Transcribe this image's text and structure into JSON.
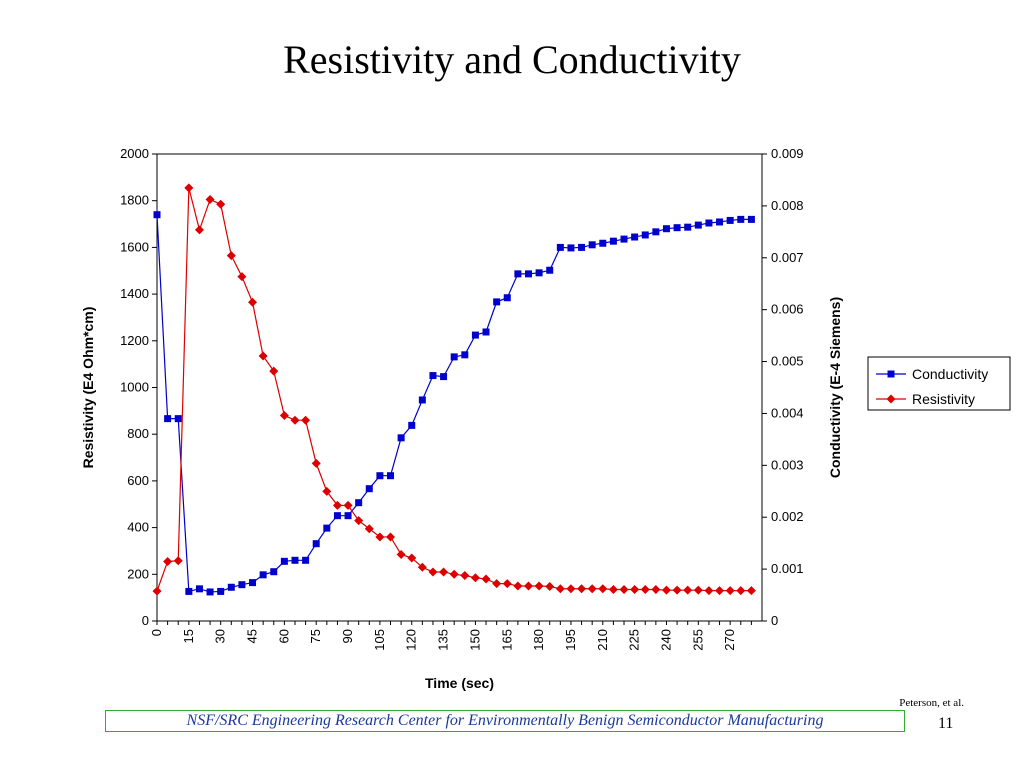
{
  "slide": {
    "title": "Resistivity and Conductivity",
    "credit": "Peterson, et al.",
    "footer": "NSF/SRC Engineering Research Center for Environmentally Benign Semiconductor Manufacturing",
    "page_number": "11"
  },
  "chart_data": {
    "type": "line",
    "xlabel": "Time (sec)",
    "ylabel_left": "Resistivity (E4 Ohm*cm)",
    "ylabel_right": "Conductivity (E-4 Siemens)",
    "ylim_left": [
      0,
      2000
    ],
    "ylim_right": [
      0,
      0.009
    ],
    "xlim": [
      0,
      285
    ],
    "left_ticks": [
      "0",
      "200",
      "400",
      "600",
      "800",
      "1000",
      "1200",
      "1400",
      "1600",
      "1800",
      "2000"
    ],
    "right_ticks": [
      "0",
      "0.001",
      "0.002",
      "0.003",
      "0.004",
      "0.005",
      "0.006",
      "0.007",
      "0.008",
      "0.009"
    ],
    "x_ticks": [
      "0",
      "15",
      "30",
      "45",
      "60",
      "75",
      "90",
      "105",
      "120",
      "135",
      "150",
      "165",
      "180",
      "195",
      "210",
      "225",
      "240",
      "255",
      "270"
    ],
    "grid": false,
    "legend_position": "right",
    "x": [
      0,
      5,
      10,
      15,
      20,
      25,
      30,
      35,
      40,
      45,
      50,
      55,
      60,
      65,
      70,
      75,
      80,
      85,
      90,
      95,
      100,
      105,
      110,
      115,
      120,
      125,
      130,
      135,
      140,
      145,
      150,
      155,
      160,
      165,
      170,
      175,
      180,
      185,
      190,
      195,
      200,
      205,
      210,
      215,
      220,
      225,
      230,
      235,
      240,
      245,
      250,
      255,
      260,
      265,
      270,
      275,
      280
    ],
    "series": [
      {
        "name": "Conductivity",
        "axis": "right",
        "color": "#0000cc",
        "marker": "square",
        "values": [
          0.00783,
          0.0039,
          0.0039,
          0.00057,
          0.00062,
          0.00056,
          0.00057,
          0.00065,
          0.0007,
          0.00074,
          0.00089,
          0.00095,
          0.00115,
          0.00117,
          0.00117,
          0.00149,
          0.00179,
          0.00203,
          0.00203,
          0.00228,
          0.00255,
          0.0028,
          0.0028,
          0.00353,
          0.00377,
          0.00426,
          0.00473,
          0.00471,
          0.00509,
          0.00513,
          0.00551,
          0.00557,
          0.00615,
          0.00623,
          0.00669,
          0.00669,
          0.00671,
          0.00676,
          0.0072,
          0.00719,
          0.0072,
          0.00725,
          0.00728,
          0.00732,
          0.00736,
          0.0074,
          0.00744,
          0.0075,
          0.00756,
          0.00758,
          0.00759,
          0.00763,
          0.00767,
          0.00769,
          0.00772,
          0.00774,
          0.00774
        ]
      },
      {
        "name": "Resistivity",
        "axis": "left",
        "color": "#dd0000",
        "marker": "diamond",
        "values": [
          128,
          255,
          258,
          1855,
          1675,
          1805,
          1785,
          1565,
          1475,
          1365,
          1135,
          1070,
          880,
          860,
          860,
          675,
          555,
          495,
          495,
          430,
          395,
          360,
          360,
          285,
          270,
          230,
          210,
          210,
          200,
          195,
          185,
          180,
          160,
          160,
          150,
          150,
          150,
          148,
          138,
          138,
          138,
          138,
          138,
          135,
          135,
          135,
          135,
          135,
          132,
          132,
          132,
          132,
          130,
          130,
          130,
          130,
          130
        ]
      }
    ]
  }
}
